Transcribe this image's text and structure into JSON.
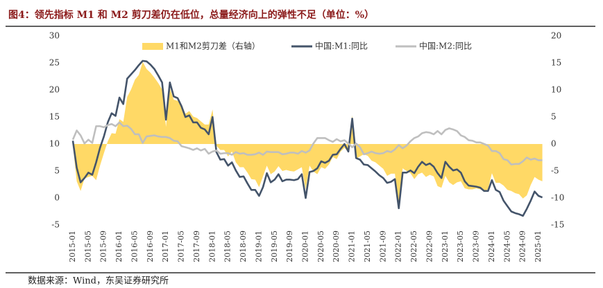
{
  "chart_data": {
    "type": "line",
    "title": "图4：领先指标 M1 和 M2 剪刀差仍在低位，总量经济向上的弹性不足（单位：%）",
    "source": "数据来源：Wind，东吴证券研究所",
    "categories": [
      "2015-01",
      null,
      null,
      null,
      "2015-05",
      null,
      null,
      null,
      "2015-09",
      null,
      null,
      null,
      "2016-01",
      null,
      null,
      null,
      "2016-05",
      null,
      null,
      null,
      "2016-09",
      null,
      null,
      null,
      "2017-01",
      null,
      null,
      null,
      "2017-05",
      null,
      null,
      null,
      "2017-09",
      null,
      null,
      null,
      "2018-01",
      null,
      null,
      null,
      "2018-05",
      null,
      null,
      null,
      "2018-09",
      null,
      null,
      null,
      "2019-01",
      null,
      null,
      null,
      "2019-05",
      null,
      null,
      null,
      "2019-09",
      null,
      null,
      null,
      "2020-01",
      null,
      null,
      null,
      "2020-05",
      null,
      null,
      null,
      "2020-09",
      null,
      null,
      null,
      "2021-01",
      null,
      null,
      null,
      "2021-05",
      null,
      null,
      null,
      "2021-09",
      null,
      null,
      null,
      "2022-01",
      null,
      null,
      null,
      "2022-05",
      null,
      null,
      null,
      "2022-09",
      null,
      null,
      null,
      "2023-01",
      null,
      null,
      null,
      "2023-05",
      null,
      null,
      null,
      "2023-09",
      null,
      null,
      null,
      "2024-01",
      null,
      null,
      null,
      "2024-05",
      null,
      null,
      null,
      "2024-09",
      null,
      null,
      null,
      "2025-01",
      null
    ],
    "series": [
      {
        "name": "M1和M2剪刀差（右轴）",
        "color": "#ffd966",
        "kind": "area",
        "axis": "y2",
        "values": [
          -0.2,
          -6.9,
          -8.7,
          -6.4,
          -6.1,
          -5.9,
          -6.7,
          -4.0,
          -1.7,
          0.5,
          2.0,
          1.9,
          4.6,
          4.1,
          8.7,
          10.1,
          11.9,
          12.8,
          15.2,
          13.9,
          13.2,
          12.3,
          11.3,
          10.1,
          3.2,
          10.3,
          8.2,
          8.0,
          7.4,
          5.6,
          6.1,
          5.1,
          4.8,
          4.2,
          3.6,
          3.6,
          6.4,
          -0.3,
          -1.1,
          -1.1,
          -2.3,
          -1.4,
          -3.4,
          -4.3,
          -4.3,
          -5.3,
          -6.5,
          -6.6,
          -8.0,
          -6.0,
          -4.0,
          -5.6,
          -5.1,
          -4.1,
          -5.0,
          -4.8,
          -5.0,
          -5.1,
          -4.7,
          -4.3,
          -8.4,
          -4.0,
          -5.1,
          -5.6,
          -4.3,
          -4.6,
          -3.8,
          -2.4,
          -2.8,
          -1.4,
          -0.7,
          -1.5,
          5.3,
          -2.7,
          -2.3,
          -1.9,
          -2.2,
          -3.1,
          -3.4,
          -4.0,
          -4.6,
          -5.9,
          -5.5,
          -5.5,
          -11.7,
          -4.5,
          -5.0,
          -5.4,
          -6.5,
          -5.6,
          -5.3,
          -6.1,
          -5.7,
          -6.0,
          -7.8,
          -8.1,
          -5.9,
          -7.1,
          -7.6,
          -7.1,
          -6.9,
          -8.2,
          -8.4,
          -8.4,
          -8.2,
          -8.4,
          -8.7,
          -8.4,
          -5.4,
          -7.2,
          -7.2,
          -7.7,
          -8.5,
          -8.7,
          -9.1,
          -9.3,
          -10.1,
          -9.5,
          -7.6,
          -6.1,
          -6.6,
          -6.9
        ]
      },
      {
        "name": "中国:M1:同比",
        "color": "#44546a",
        "kind": "line",
        "values": [
          10.6,
          5.6,
          2.9,
          3.7,
          4.7,
          4.3,
          6.6,
          9.3,
          11.4,
          14.0,
          15.7,
          15.2,
          18.6,
          17.4,
          22.1,
          22.9,
          23.7,
          24.6,
          25.4,
          25.3,
          24.7,
          23.9,
          22.7,
          21.4,
          14.5,
          21.4,
          18.8,
          18.5,
          17.0,
          15.0,
          15.3,
          14.0,
          14.0,
          13.0,
          12.7,
          11.8,
          15.0,
          8.5,
          7.1,
          7.2,
          6.0,
          6.6,
          5.1,
          3.9,
          4.0,
          2.7,
          1.5,
          1.5,
          0.4,
          2.0,
          4.6,
          2.9,
          3.4,
          4.4,
          3.1,
          3.4,
          3.4,
          3.3,
          3.5,
          4.4,
          0.0,
          4.8,
          5.0,
          5.5,
          6.8,
          6.5,
          6.9,
          8.0,
          8.1,
          9.1,
          10.0,
          8.6,
          14.7,
          7.4,
          7.1,
          6.2,
          6.1,
          5.5,
          4.9,
          4.2,
          3.7,
          2.8,
          3.0,
          3.5,
          -1.9,
          4.7,
          4.7,
          5.1,
          4.6,
          5.8,
          6.7,
          6.1,
          6.4,
          5.8,
          4.6,
          3.7,
          6.7,
          5.8,
          5.1,
          5.3,
          4.7,
          3.1,
          2.3,
          2.2,
          2.1,
          1.9,
          1.3,
          1.3,
          3.3,
          1.5,
          1.1,
          -0.5,
          -1.5,
          -2.5,
          -2.8,
          -3.0,
          -3.3,
          -2.0,
          -0.5,
          1.2,
          0.4,
          0.1
        ]
      },
      {
        "name": "中国:M2:同比",
        "color": "#bfbfbf",
        "kind": "line",
        "values": [
          10.8,
          12.5,
          11.6,
          10.1,
          10.8,
          10.2,
          13.3,
          13.3,
          13.1,
          13.5,
          13.7,
          13.3,
          14.0,
          13.3,
          13.4,
          12.8,
          11.8,
          11.8,
          10.2,
          11.4,
          11.5,
          11.6,
          11.4,
          11.3,
          11.3,
          11.1,
          10.6,
          10.5,
          9.6,
          9.4,
          9.2,
          8.9,
          9.2,
          8.8,
          9.1,
          8.2,
          8.6,
          8.8,
          8.2,
          8.3,
          8.3,
          8.0,
          8.5,
          8.2,
          8.3,
          8.0,
          8.0,
          8.1,
          8.4,
          8.0,
          8.6,
          8.5,
          8.5,
          8.5,
          8.1,
          8.2,
          8.4,
          8.4,
          8.2,
          8.7,
          8.4,
          8.8,
          10.1,
          11.1,
          11.1,
          11.1,
          10.7,
          10.4,
          10.9,
          10.5,
          10.7,
          10.1,
          9.4,
          10.1,
          9.4,
          8.1,
          8.3,
          8.6,
          8.3,
          8.2,
          8.3,
          8.7,
          8.5,
          9.0,
          9.8,
          9.2,
          9.7,
          10.5,
          11.1,
          11.4,
          12.0,
          12.2,
          12.1,
          11.8,
          12.4,
          11.8,
          12.6,
          12.9,
          12.7,
          12.4,
          11.6,
          11.3,
          10.7,
          10.6,
          10.3,
          10.3,
          10.0,
          9.7,
          8.7,
          8.7,
          8.3,
          7.2,
          7.0,
          6.2,
          6.3,
          6.3,
          6.8,
          7.5,
          7.1,
          7.3,
          7.0,
          7.0
        ]
      }
    ],
    "ylim": [
      -5,
      30
    ],
    "yticks": [
      -5,
      0,
      5,
      10,
      15,
      20,
      25,
      30
    ],
    "y2lim": [
      -15,
      20
    ],
    "y2ticks": [
      -15,
      -10,
      -5,
      0,
      5,
      10,
      15,
      20
    ],
    "legend": "top"
  }
}
